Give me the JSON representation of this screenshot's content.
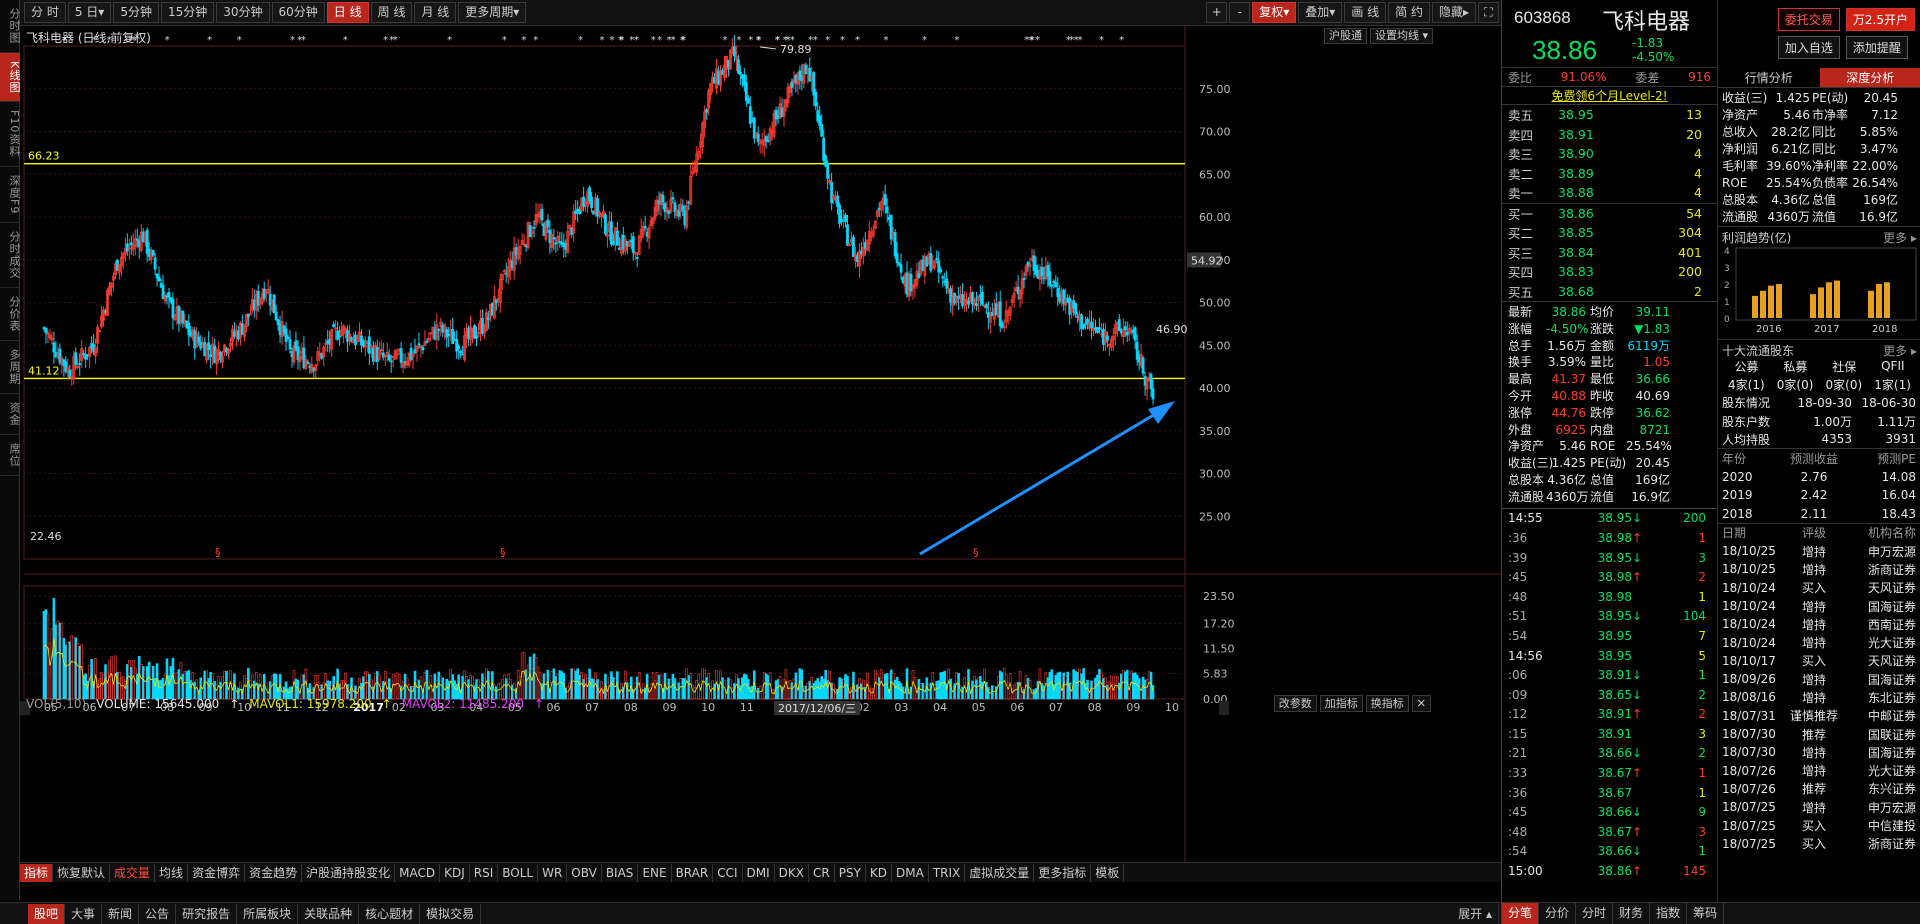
{
  "vtabs": [
    "分时图",
    "K线图",
    "F10资料",
    "深度F9",
    "分时成交",
    "分价表",
    "多周期",
    "资金",
    "席位"
  ],
  "vtab_active": 1,
  "toolbar": {
    "periods": [
      "分 时",
      "5 日▾",
      "5分钟",
      "15分钟",
      "30分钟",
      "60分钟",
      "日 线",
      "周 线",
      "月 线",
      "更多周期▾"
    ],
    "active": 6,
    "right": [
      "+",
      "-",
      "复权▾",
      "叠加▾",
      "画 线",
      "简 约",
      "隐藏▸"
    ]
  },
  "chart": {
    "title": "飞科电器 (日线,前复权)",
    "btn_hgt": "沪股通",
    "btn_settings": "设置均线 ▾",
    "level_high": "66.23",
    "level_low": "41.12",
    "max_label": "79.89",
    "min_label": "22.46",
    "last_price_tag": "54.92",
    "last_close_tag": "46.90",
    "date_tip": "2017/12/06/三",
    "vol_label": "VOL(5,10)",
    "volume": "VOLUME: 15645.000",
    "mavol1": "MAVOL1: 15978.200",
    "mavol2": "MAVOL2: 11485.200",
    "vol_btns": [
      "改参数",
      "加指标",
      "换指标"
    ],
    "price_axis": [
      "75.00",
      "70.00",
      "65.00",
      "60.00",
      "55.00",
      "50.00",
      "45.00",
      "40.00",
      "35.00",
      "30.00",
      "25.00"
    ],
    "vol_axis": [
      "23.50",
      "17.20",
      "11.50",
      "5.83",
      "0.00"
    ],
    "x_axis": [
      "05",
      "06",
      "07",
      "08",
      "09",
      "10",
      "11",
      "12",
      "2017",
      "02",
      "03",
      "04",
      "05",
      "06",
      "07",
      "08",
      "09",
      "10",
      "11",
      "12",
      "2018",
      "02",
      "03",
      "04",
      "05",
      "06",
      "07",
      "08",
      "09",
      "10"
    ]
  },
  "chart_data": {
    "type": "candlestick",
    "title": "飞科电器 (日线,前复权)",
    "y_range": [
      20,
      80
    ],
    "horizontal_lines": [
      66.23,
      41.12
    ],
    "annotated_high": 79.89,
    "last_close": 38.86,
    "approx_close_path": [
      47,
      42,
      45,
      55,
      58,
      50,
      46,
      44,
      47,
      52,
      44,
      43,
      47,
      45,
      43,
      44,
      47,
      45,
      48,
      55,
      60,
      56,
      63,
      58,
      56,
      62,
      60,
      75,
      79,
      68,
      73,
      78,
      62,
      55,
      62,
      52,
      55,
      50,
      50,
      48,
      55,
      52,
      48,
      46,
      47,
      38.86
    ]
  },
  "indicators": [
    "指标",
    "恢复默认",
    "成交量",
    "均线",
    "资金博弈",
    "资金趋势",
    "沪股通持股变化",
    "MACD",
    "KDJ",
    "RSI",
    "BOLL",
    "WR",
    "OBV",
    "BIAS",
    "ENE",
    "BRAR",
    "CCI",
    "DMI",
    "DKX",
    "CR",
    "PSY",
    "KD",
    "DMA",
    "TRIX",
    "虚拟成交量",
    "更多指标",
    "模板"
  ],
  "bottom_nav": [
    "股吧",
    "大事",
    "新闻",
    "公告",
    "研究报告",
    "所属板块",
    "关联品种",
    "核心题材",
    "模拟交易"
  ],
  "bottom_right": "展开 ▴",
  "quote": {
    "code": "603868",
    "name": "飞科电器",
    "price": "38.86",
    "change": "-1.83",
    "pct": "-4.50%",
    "btn_trade": "委托交易",
    "btn_open": "万2.5开户",
    "btn_fav": "加入自选",
    "btn_alert": "添加提醒",
    "weibi_label": "委比",
    "weibi": "91.06%",
    "weicha_label": "委差",
    "weicha": "916",
    "promo": "免费领6个月Level-2!",
    "sells": [
      [
        "卖五",
        "38.95",
        "13"
      ],
      [
        "卖四",
        "38.91",
        "20"
      ],
      [
        "卖三",
        "38.90",
        "4"
      ],
      [
        "卖二",
        "38.89",
        "4"
      ],
      [
        "卖一",
        "38.88",
        "4"
      ]
    ],
    "buys": [
      [
        "买一",
        "38.86",
        "54"
      ],
      [
        "买二",
        "38.85",
        "304"
      ],
      [
        "买三",
        "38.84",
        "401"
      ],
      [
        "买四",
        "38.83",
        "200"
      ],
      [
        "买五",
        "38.68",
        "2"
      ]
    ],
    "stats": [
      [
        "最新",
        "38.86",
        "均价",
        "39.11"
      ],
      [
        "涨幅",
        "-4.50%",
        "涨跌",
        "▼1.83"
      ],
      [
        "总手",
        "1.56万",
        "金额",
        "6119万"
      ],
      [
        "换手",
        "3.59%",
        "量比",
        "1.05"
      ],
      [
        "最高",
        "41.37",
        "最低",
        "36.66"
      ],
      [
        "今开",
        "40.88",
        "昨收",
        "40.69"
      ],
      [
        "涨停",
        "44.76",
        "跌停",
        "36.62"
      ],
      [
        "外盘",
        "6925",
        "内盘",
        "8721"
      ],
      [
        "净资产",
        "5.46",
        "ROE",
        "25.54%"
      ],
      [
        "收益(三)",
        "1.425",
        "PE(动)",
        "20.45"
      ],
      [
        "总股本",
        "4.36亿",
        "总值",
        "169亿"
      ],
      [
        "流通股",
        "4360万",
        "流值",
        "16.9亿"
      ]
    ],
    "tape": [
      [
        "14:55",
        "38.95",
        "↓",
        "200"
      ],
      [
        ":36",
        "38.98",
        "↑",
        "1"
      ],
      [
        ":39",
        "38.95",
        "↓",
        "3"
      ],
      [
        ":45",
        "38.98",
        "↑",
        "2"
      ],
      [
        ":48",
        "38.98",
        "",
        "1"
      ],
      [
        ":51",
        "38.95",
        "↓",
        "104"
      ],
      [
        ":54",
        "38.95",
        "",
        "7"
      ],
      [
        "14:56",
        "38.95",
        "",
        "5"
      ],
      [
        ":06",
        "38.91",
        "↓",
        "1"
      ],
      [
        ":09",
        "38.65",
        "↓",
        "2"
      ],
      [
        ":12",
        "38.91",
        "↑",
        "2"
      ],
      [
        ":15",
        "38.91",
        "",
        "3"
      ],
      [
        ":21",
        "38.66",
        "↓",
        "2"
      ],
      [
        ":33",
        "38.67",
        "↑",
        "1"
      ],
      [
        ":36",
        "38.67",
        "",
        "1"
      ],
      [
        ":45",
        "38.66",
        "↓",
        "9"
      ],
      [
        ":48",
        "38.67",
        "↑",
        "3"
      ],
      [
        ":54",
        "38.66",
        "↓",
        "1"
      ],
      [
        "15:00",
        "38.86",
        "↑",
        "145"
      ]
    ],
    "bottom_tabs": [
      "分笔",
      "分价",
      "分时",
      "财务",
      "指数",
      "筹码"
    ]
  },
  "fund": {
    "tabs": [
      "行情分析",
      "深度分析"
    ],
    "rows": [
      [
        "收益(三)",
        "1.425",
        "PE(动)",
        "20.45"
      ],
      [
        "净资产",
        "5.46",
        "市净率",
        "7.12"
      ],
      [
        "总收入",
        "28.2亿",
        "同比",
        "5.85%"
      ],
      [
        "净利润",
        "6.21亿",
        "同比",
        "3.47%"
      ],
      [
        "毛利率",
        "39.60%",
        "净利率",
        "22.00%"
      ],
      [
        "ROE",
        "25.54%",
        "负债率",
        "26.54%"
      ],
      [
        "总股本",
        "4.36亿",
        "总值",
        "169亿"
      ],
      [
        "流通股",
        "4360万",
        "流值",
        "16.9亿"
      ]
    ],
    "profit_title": "利润趋势(亿)",
    "more": "更多",
    "profit_years": [
      "2016",
      "2017",
      "2018"
    ],
    "profit_values": [
      [
        1.3,
        1.6,
        1.9,
        2.0
      ],
      [
        1.4,
        1.8,
        2.1,
        2.2
      ],
      [
        1.6,
        2.0,
        2.1,
        0
      ]
    ],
    "profit_axis": [
      "4",
      "3",
      "2",
      "1",
      "0"
    ],
    "holders_title": "十大流通股东",
    "holder_heads": [
      "公募",
      "私募",
      "社保",
      "QFII"
    ],
    "holder_vals": [
      "4家(1)",
      "0家(0)",
      "0家(0)",
      "1家(1)"
    ],
    "shareholder_rows": [
      [
        "股东情况",
        "18-09-30",
        "18-06-30"
      ],
      [
        "股东户数",
        "1.00万",
        "1.11万"
      ],
      [
        "人均持股",
        "4353",
        "3931"
      ]
    ],
    "forecast_head": [
      "年份",
      "预测收益",
      "预测PE"
    ],
    "forecast": [
      [
        "2020",
        "2.76",
        "14.08"
      ],
      [
        "2019",
        "2.42",
        "16.04"
      ],
      [
        "2018",
        "2.11",
        "18.43"
      ]
    ],
    "rating_head": [
      "日期",
      "评级",
      "机构名称"
    ],
    "ratings": [
      [
        "18/10/25",
        "增持",
        "申万宏源"
      ],
      [
        "18/10/25",
        "增持",
        "浙商证券"
      ],
      [
        "18/10/24",
        "买入",
        "天风证券"
      ],
      [
        "18/10/24",
        "增持",
        "国海证券"
      ],
      [
        "18/10/24",
        "增持",
        "西南证券"
      ],
      [
        "18/10/24",
        "增持",
        "光大证券"
      ],
      [
        "18/10/17",
        "买入",
        "天风证券"
      ],
      [
        "18/09/26",
        "增持",
        "国海证券"
      ],
      [
        "18/08/16",
        "增持",
        "东北证券"
      ],
      [
        "18/07/31",
        "谨慎推荐",
        "中邮证券"
      ],
      [
        "18/07/30",
        "推荐",
        "国联证券"
      ],
      [
        "18/07/30",
        "增持",
        "国海证券"
      ],
      [
        "18/07/26",
        "增持",
        "光大证券"
      ],
      [
        "18/07/26",
        "推荐",
        "东兴证券"
      ],
      [
        "18/07/25",
        "增持",
        "申万宏源"
      ],
      [
        "18/07/25",
        "买入",
        "中信建投"
      ],
      [
        "18/07/25",
        "买入",
        "浙商证券"
      ]
    ]
  }
}
